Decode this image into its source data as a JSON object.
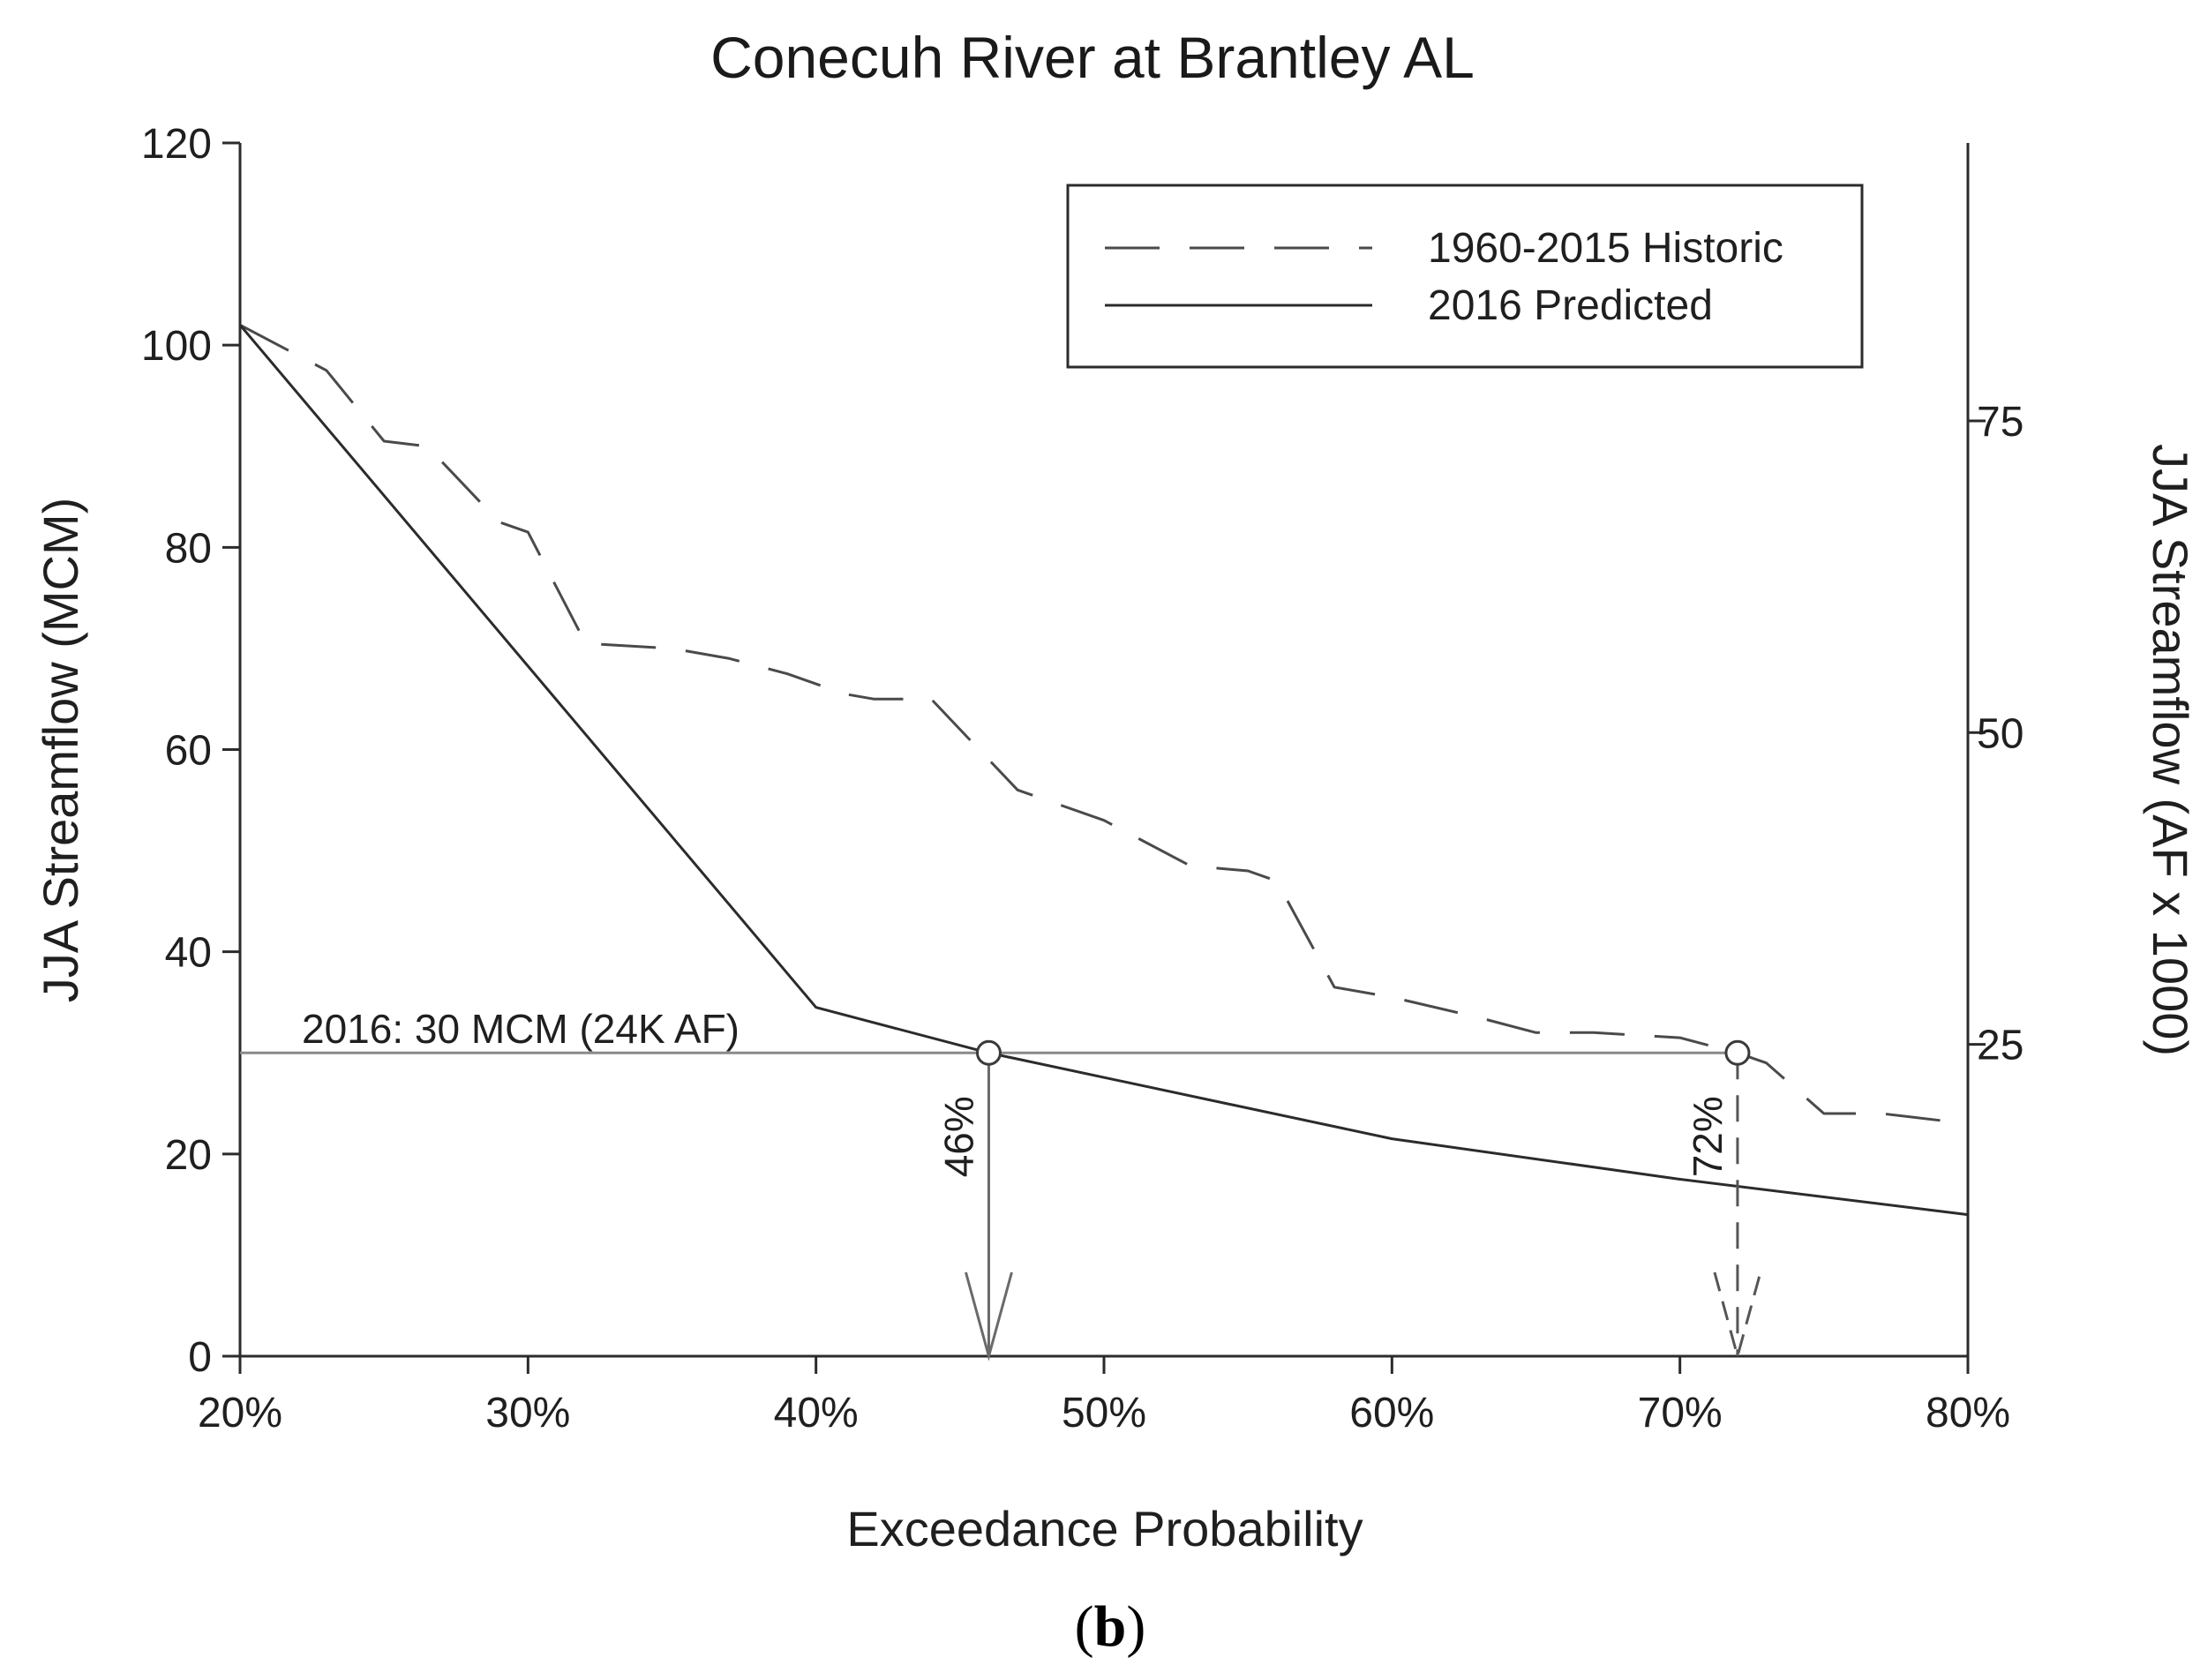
{
  "chart_data": {
    "type": "line",
    "title": "Conecuh River at Brantley AL",
    "xlabel": "Exceedance Probability",
    "ylabel": "JJA Streamflow (MCM)",
    "y2label": "JJA Streamflow (AF x 1000)",
    "xlim": [
      20,
      80
    ],
    "ylim": [
      0,
      120
    ],
    "x_ticks": [
      20,
      30,
      40,
      50,
      60,
      70,
      80
    ],
    "x_tick_labels": [
      "20%",
      "30%",
      "40%",
      "50%",
      "60%",
      "70%",
      "80%"
    ],
    "y_ticks": [
      0,
      20,
      40,
      60,
      80,
      100,
      120
    ],
    "y_tick_labels": [
      "0",
      "20",
      "40",
      "60",
      "80",
      "100",
      "120"
    ],
    "y2_ticks": [
      25,
      50,
      75
    ],
    "y2_tick_labels": [
      "25",
      "50",
      "75"
    ],
    "y2_per_y": 0.8107,
    "grid": false,
    "legend_position": "top-right",
    "series": [
      {
        "name": "1960-2015 Historic",
        "style": "dashed",
        "color": "#4a4a4a",
        "x": [
          20,
          23,
          25,
          26.5,
          29,
          30,
          32,
          35,
          37,
          39,
          41,
          42,
          44,
          45,
          47,
          48,
          50,
          53,
          55,
          56,
          58,
          60,
          63,
          65,
          67,
          70,
          72,
          73,
          75,
          77,
          80
        ],
        "y": [
          102,
          97.5,
          90.5,
          90,
          82.5,
          81.5,
          70.5,
          70,
          69,
          67.5,
          65.5,
          65,
          65,
          62,
          56,
          55,
          53,
          48.5,
          48,
          47,
          36.5,
          35.5,
          33.5,
          32,
          32,
          31.5,
          30,
          29,
          24,
          24,
          23
        ]
      },
      {
        "name": "2016 Predicted",
        "style": "solid",
        "color": "#2b2b2b",
        "x": [
          20,
          40,
          46,
          60,
          70,
          80
        ],
        "y": [
          102,
          34.5,
          30,
          21.5,
          17.5,
          14
        ]
      }
    ],
    "reference_line": {
      "y": 30,
      "label": "2016: 30 MCM (24K AF)"
    },
    "annotations": [
      {
        "x": 46,
        "y": 30,
        "label": "46%",
        "style": "solid"
      },
      {
        "x": 72,
        "y": 30,
        "label": "72%",
        "style": "dashed"
      }
    ]
  },
  "caption": {
    "open": "(",
    "letter": "b",
    "close": ")"
  }
}
